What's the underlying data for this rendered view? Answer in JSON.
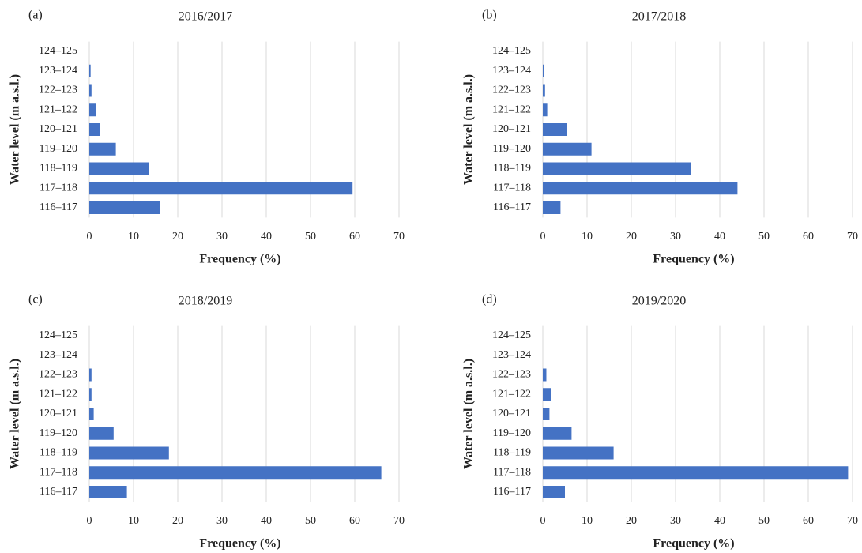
{
  "chart_data": [
    {
      "type": "bar",
      "orientation": "horizontal",
      "panel": "(a)",
      "title": "2016/2017",
      "x_label": "Frequency (%)",
      "y_label": "Water level (m a.s.l.)",
      "color": "#4472c4",
      "grid": true,
      "categories": [
        "124–125",
        "123–124",
        "122–123",
        "121–122",
        "120–121",
        "119–120",
        "118–119",
        "117–118",
        "116–117"
      ],
      "values": [
        0,
        0.3,
        0.5,
        1.5,
        2.5,
        6,
        13.5,
        59.5,
        16
      ],
      "xlim": [
        0,
        70
      ],
      "xticks": [
        0,
        10,
        20,
        30,
        40,
        50,
        60,
        70
      ]
    },
    {
      "type": "bar",
      "orientation": "horizontal",
      "panel": "(b)",
      "title": "2017/2018",
      "x_label": "Frequency (%)",
      "y_label": "Water level (m a.s.l.)",
      "color": "#4472c4",
      "grid": true,
      "categories": [
        "124–125",
        "123–124",
        "122–123",
        "121–122",
        "120–121",
        "119–120",
        "118–119",
        "117–118",
        "116–117"
      ],
      "values": [
        0,
        0.3,
        0.5,
        1,
        5.5,
        11,
        33.5,
        44,
        4
      ],
      "xlim": [
        0,
        70
      ],
      "xticks": [
        0,
        10,
        20,
        30,
        40,
        50,
        60,
        70
      ]
    },
    {
      "type": "bar",
      "orientation": "horizontal",
      "panel": "(c)",
      "title": "2018/2019",
      "x_label": "Frequency (%)",
      "y_label": "Water level (m a.s.l.)",
      "color": "#4472c4",
      "grid": true,
      "categories": [
        "124–125",
        "123–124",
        "122–123",
        "121–122",
        "120–121",
        "119–120",
        "118–119",
        "117–118",
        "116–117"
      ],
      "values": [
        0,
        0,
        0.5,
        0.5,
        1,
        5.5,
        18,
        66,
        8.5
      ],
      "xlim": [
        0,
        70
      ],
      "xticks": [
        0,
        10,
        20,
        30,
        40,
        50,
        60,
        70
      ]
    },
    {
      "type": "bar",
      "orientation": "horizontal",
      "panel": "(d)",
      "title": "2019/2020",
      "x_label": "Frequency (%)",
      "y_label": "Water level (m a.s.l.)",
      "color": "#4472c4",
      "grid": true,
      "categories": [
        "124–125",
        "123–124",
        "122–123",
        "121–122",
        "120–121",
        "119–120",
        "118–119",
        "117–118",
        "116–117"
      ],
      "values": [
        0,
        0,
        0.8,
        1.8,
        1.5,
        6.5,
        16,
        69,
        5
      ],
      "xlim": [
        0,
        70
      ],
      "xticks": [
        0,
        10,
        20,
        30,
        40,
        50,
        60,
        70
      ]
    }
  ]
}
